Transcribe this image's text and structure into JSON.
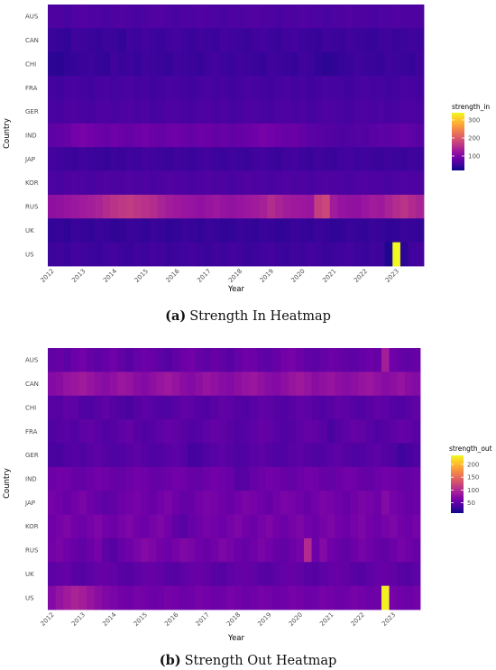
{
  "chart_data": [
    {
      "type": "heatmap",
      "caption_label": "(a)",
      "caption": "Strength In Heatmap",
      "xlabel": "Year",
      "ylabel": "Country",
      "legend_title": "strength_in",
      "legend_ticks": [
        100,
        200,
        300
      ],
      "value_range": [
        20,
        340
      ],
      "legend_position": "right",
      "colormap": [
        "#0d0887",
        "#46039f",
        "#7201a8",
        "#9c179e",
        "#bd3786",
        "#d8576b",
        "#ed7953",
        "#fb9f3a",
        "#fdca26",
        "#f0f921"
      ],
      "x_tick_labels": [
        "2012",
        "2013",
        "2014",
        "2015",
        "2016",
        "2017",
        "2018",
        "2019",
        "2020",
        "2021",
        "2022",
        "2023"
      ],
      "n_columns": 48,
      "y_categories": [
        "AUS",
        "CAN",
        "CHI",
        "FRA",
        "GER",
        "IND",
        "JAP",
        "KOR",
        "RUS",
        "UK",
        "US"
      ],
      "rows": [
        [
          60,
          62,
          58,
          64,
          66,
          62,
          60,
          58,
          62,
          64,
          60,
          58,
          62,
          64,
          66,
          60,
          58,
          62,
          60,
          64,
          62,
          60,
          58,
          62,
          60,
          64,
          66,
          62,
          60,
          58,
          62,
          60,
          64,
          62,
          60,
          58,
          60,
          62,
          64,
          60,
          62,
          58,
          60,
          62,
          64,
          60,
          62,
          60
        ],
        [
          48,
          46,
          44,
          52,
          50,
          48,
          46,
          50,
          48,
          44,
          52,
          50,
          54,
          50,
          48,
          52,
          54,
          50,
          48,
          52,
          50,
          48,
          54,
          52,
          50,
          48,
          52,
          54,
          50,
          48,
          52,
          54,
          50,
          48,
          46,
          52,
          50,
          48,
          52,
          50,
          48,
          46,
          50,
          52,
          48,
          50,
          52,
          50
        ],
        [
          40,
          38,
          44,
          46,
          48,
          50,
          46,
          44,
          52,
          48,
          50,
          46,
          52,
          50,
          48,
          46,
          52,
          50,
          48,
          46,
          52,
          54,
          50,
          48,
          52,
          50,
          48,
          46,
          52,
          50,
          48,
          46,
          52,
          50,
          44,
          40,
          42,
          46,
          48,
          52,
          50,
          48,
          46,
          52,
          50,
          48,
          46,
          52
        ],
        [
          54,
          52,
          56,
          58,
          54,
          52,
          56,
          58,
          54,
          56,
          58,
          54,
          56,
          52,
          54,
          58,
          56,
          54,
          52,
          56,
          58,
          54,
          56,
          52,
          54,
          58,
          56,
          54,
          52,
          56,
          58,
          54,
          56,
          52,
          54,
          58,
          56,
          54,
          52,
          56,
          58,
          54,
          56,
          52,
          54,
          58,
          56,
          54
        ],
        [
          58,
          56,
          60,
          62,
          58,
          56,
          60,
          62,
          58,
          60,
          62,
          58,
          60,
          56,
          58,
          62,
          60,
          58,
          56,
          60,
          62,
          58,
          60,
          56,
          58,
          62,
          60,
          58,
          56,
          60,
          62,
          58,
          60,
          56,
          58,
          62,
          60,
          58,
          56,
          60,
          62,
          58,
          60,
          56,
          58,
          62,
          60,
          58
        ],
        [
          74,
          78,
          82,
          92,
          96,
          90,
          86,
          82,
          88,
          84,
          80,
          86,
          90,
          84,
          80,
          86,
          88,
          82,
          80,
          86,
          84,
          80,
          82,
          78,
          80,
          84,
          88,
          94,
          90,
          86,
          82,
          84,
          78,
          72,
          70,
          68,
          66,
          62,
          64,
          68,
          66,
          70,
          74,
          72,
          76,
          80,
          74,
          70
        ],
        [
          54,
          52,
          50,
          48,
          52,
          50,
          48,
          46,
          50,
          48,
          52,
          50,
          54,
          52,
          50,
          48,
          52,
          50,
          48,
          52,
          54,
          50,
          48,
          52,
          50,
          48,
          52,
          54,
          50,
          48,
          52,
          54,
          50,
          48,
          52,
          50,
          48,
          52,
          54,
          50,
          52,
          50,
          48,
          52,
          50,
          48,
          52,
          50
        ],
        [
          60,
          58,
          62,
          64,
          60,
          58,
          62,
          64,
          60,
          62,
          64,
          60,
          62,
          58,
          60,
          64,
          62,
          60,
          58,
          62,
          64,
          60,
          62,
          58,
          60,
          64,
          62,
          60,
          58,
          62,
          64,
          60,
          62,
          58,
          60,
          64,
          62,
          60,
          58,
          62,
          64,
          60,
          62,
          58,
          60,
          64,
          62,
          60
        ],
        [
          115,
          118,
          122,
          126,
          130,
          134,
          140,
          150,
          158,
          164,
          168,
          160,
          156,
          150,
          140,
          132,
          128,
          124,
          120,
          116,
          122,
          126,
          120,
          118,
          122,
          126,
          130,
          136,
          150,
          140,
          132,
          128,
          126,
          124,
          170,
          180,
          132,
          120,
          118,
          116,
          124,
          132,
          128,
          140,
          150,
          158,
          148,
          140
        ],
        [
          44,
          46,
          42,
          48,
          46,
          44,
          48,
          46,
          42,
          44,
          48,
          46,
          44,
          48,
          46,
          42,
          44,
          48,
          46,
          44,
          48,
          46,
          42,
          44,
          48,
          46,
          44,
          48,
          46,
          42,
          44,
          48,
          46,
          44,
          48,
          46,
          42,
          44,
          48,
          46,
          44,
          48,
          46,
          42,
          44,
          48,
          46,
          44
        ],
        [
          50,
          52,
          48,
          54,
          52,
          50,
          48,
          52,
          54,
          50,
          48,
          52,
          50,
          54,
          52,
          48,
          50,
          52,
          54,
          50,
          48,
          52,
          50,
          54,
          52,
          48,
          50,
          52,
          54,
          50,
          48,
          52,
          50,
          54,
          52,
          48,
          50,
          52,
          54,
          50,
          48,
          52,
          50,
          30,
          340,
          40,
          52,
          54
        ]
      ]
    },
    {
      "type": "heatmap",
      "caption_label": "(b)",
      "caption": "Strength Out Heatmap",
      "xlabel": "Year",
      "ylabel": "Country",
      "legend_title": "strength_out",
      "legend_ticks": [
        50,
        100,
        150,
        200
      ],
      "value_range": [
        10,
        235
      ],
      "legend_position": "right",
      "colormap": [
        "#0d0887",
        "#46039f",
        "#7201a8",
        "#9c179e",
        "#bd3786",
        "#d8576b",
        "#ed7953",
        "#fb9f3a",
        "#fdca26",
        "#f0f921"
      ],
      "x_tick_labels": [
        "2012",
        "2013",
        "2014",
        "2015",
        "2016",
        "2017",
        "2018",
        "2019",
        "2020",
        "2021",
        "2022",
        "2023"
      ],
      "n_columns": 48,
      "y_categories": [
        "AUS",
        "CAN",
        "CHI",
        "FRA",
        "GER",
        "IND",
        "JAP",
        "KOR",
        "RUS",
        "UK",
        "US"
      ],
      "rows": [
        [
          50,
          54,
          48,
          56,
          60,
          52,
          48,
          54,
          58,
          50,
          46,
          52,
          56,
          54,
          48,
          44,
          50,
          56,
          60,
          52,
          48,
          54,
          50,
          46,
          52,
          58,
          56,
          50,
          48,
          54,
          60,
          62,
          56,
          50,
          48,
          52,
          56,
          54,
          50,
          48,
          52,
          56,
          54,
          90,
          58,
          52,
          50,
          54
        ],
        [
          70,
          74,
          80,
          84,
          88,
          82,
          76,
          72,
          78,
          84,
          80,
          74,
          70,
          76,
          82,
          86,
          80,
          74,
          70,
          76,
          82,
          78,
          72,
          70,
          76,
          80,
          84,
          78,
          72,
          70,
          76,
          82,
          86,
          80,
          74,
          78,
          82,
          76,
          72,
          76,
          80,
          84,
          78,
          72,
          76,
          80,
          74,
          70
        ],
        [
          46,
          44,
          50,
          48,
          42,
          40,
          46,
          50,
          44,
          40,
          38,
          44,
          48,
          46,
          42,
          40,
          46,
          50,
          48,
          44,
          42,
          46,
          50,
          48,
          44,
          42,
          46,
          50,
          48,
          44,
          42,
          46,
          50,
          48,
          44,
          42,
          46,
          50,
          48,
          44,
          42,
          46,
          50,
          48,
          44,
          42,
          46,
          50
        ],
        [
          40,
          44,
          46,
          42,
          48,
          50,
          46,
          42,
          44,
          48,
          52,
          46,
          42,
          44,
          48,
          52,
          50,
          46,
          42,
          44,
          48,
          52,
          50,
          46,
          42,
          44,
          48,
          52,
          50,
          46,
          42,
          44,
          48,
          52,
          50,
          46,
          38,
          44,
          48,
          52,
          50,
          46,
          42,
          44,
          48,
          52,
          50,
          46
        ],
        [
          38,
          36,
          42,
          44,
          40,
          46,
          48,
          44,
          40,
          42,
          46,
          48,
          44,
          40,
          42,
          46,
          48,
          44,
          34,
          36,
          42,
          46,
          48,
          44,
          40,
          42,
          46,
          48,
          44,
          40,
          42,
          46,
          48,
          44,
          40,
          42,
          46,
          48,
          44,
          40,
          42,
          46,
          48,
          44,
          40,
          32,
          36,
          40
        ],
        [
          56,
          60,
          58,
          54,
          52,
          56,
          60,
          58,
          54,
          52,
          56,
          60,
          58,
          54,
          52,
          56,
          60,
          58,
          54,
          52,
          56,
          60,
          58,
          54,
          44,
          46,
          52,
          56,
          60,
          58,
          54,
          52,
          56,
          60,
          58,
          54,
          52,
          56,
          60,
          58,
          54,
          52,
          56,
          60,
          58,
          54,
          52,
          56
        ],
        [
          62,
          58,
          54,
          60,
          64,
          58,
          52,
          48,
          50,
          56,
          60,
          62,
          58,
          54,
          60,
          64,
          58,
          52,
          54,
          60,
          64,
          62,
          58,
          54,
          60,
          64,
          62,
          58,
          54,
          60,
          64,
          62,
          58,
          54,
          60,
          64,
          62,
          58,
          54,
          60,
          64,
          62,
          58,
          70,
          62,
          58,
          54,
          56
        ],
        [
          58,
          62,
          66,
          60,
          56,
          62,
          66,
          60,
          56,
          62,
          66,
          60,
          56,
          62,
          66,
          60,
          50,
          46,
          52,
          58,
          62,
          60,
          56,
          62,
          66,
          60,
          56,
          62,
          66,
          60,
          56,
          62,
          66,
          60,
          56,
          62,
          66,
          60,
          56,
          62,
          66,
          60,
          56,
          62,
          66,
          60,
          56,
          62
        ],
        [
          60,
          64,
          58,
          54,
          50,
          56,
          62,
          48,
          44,
          52,
          58,
          64,
          70,
          66,
          60,
          56,
          62,
          68,
          64,
          58,
          54,
          60,
          66,
          62,
          56,
          52,
          58,
          64,
          60,
          54,
          50,
          56,
          62,
          100,
          56,
          70,
          58,
          54,
          50,
          56,
          62,
          58,
          54,
          50,
          56,
          62,
          58,
          54
        ],
        [
          48,
          50,
          52,
          46,
          44,
          48,
          52,
          54,
          50,
          46,
          44,
          48,
          52,
          54,
          50,
          46,
          44,
          48,
          52,
          54,
          50,
          46,
          44,
          48,
          52,
          54,
          50,
          46,
          44,
          48,
          52,
          54,
          50,
          46,
          44,
          48,
          52,
          54,
          50,
          46,
          44,
          48,
          52,
          54,
          50,
          46,
          44,
          48
        ],
        [
          70,
          80,
          88,
          94,
          90,
          82,
          74,
          68,
          64,
          60,
          58,
          62,
          60,
          56,
          58,
          62,
          60,
          56,
          58,
          62,
          60,
          56,
          58,
          62,
          60,
          56,
          58,
          62,
          60,
          56,
          58,
          62,
          60,
          56,
          58,
          62,
          60,
          56,
          58,
          62,
          60,
          56,
          58,
          230,
          62,
          58,
          56,
          60
        ]
      ]
    }
  ]
}
